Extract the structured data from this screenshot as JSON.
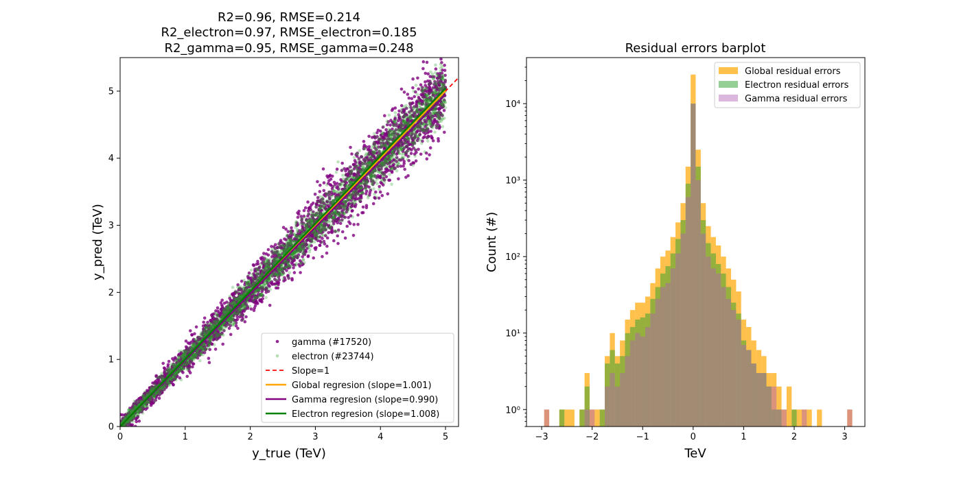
{
  "chart_data": [
    {
      "type": "scatter",
      "title_lines": [
        "R2=0.96, RMSE=0.214",
        "R2_electron=0.97, RMSE_electron=0.185",
        "R2_gamma=0.95, RMSE_gamma=0.248"
      ],
      "xlabel": "y_true (TeV)",
      "ylabel": "y_pred (TeV)",
      "xlim": [
        0,
        5.2
      ],
      "ylim": [
        0,
        5.5
      ],
      "xticks": [
        "0",
        "1",
        "2",
        "3",
        "4",
        "5"
      ],
      "yticks": [
        "0",
        "1",
        "2",
        "3",
        "4",
        "5"
      ],
      "grid": false,
      "legend_position": "lower-right",
      "series": [
        {
          "name": "gamma (#17520)",
          "kind": "scatter",
          "color": "#800080",
          "count": 17520,
          "spread": 0.248
        },
        {
          "name": "electron (#23744)",
          "kind": "scatter",
          "color": "#2ca02c",
          "count": 23744,
          "spread": 0.185
        },
        {
          "name": "Slope=1",
          "kind": "line",
          "style": "dashed",
          "color": "#ff0000",
          "slope": 1.0
        },
        {
          "name": "Global regresion (slope=1.001)",
          "kind": "line",
          "style": "solid",
          "color": "#ffa500",
          "slope": 1.001
        },
        {
          "name": "Gamma regresion (slope=0.990)",
          "kind": "line",
          "style": "solid",
          "color": "#800080",
          "slope": 0.99
        },
        {
          "name": "Electron regresion (slope=1.008)",
          "kind": "line",
          "style": "solid",
          "color": "#008000",
          "slope": 1.008
        }
      ],
      "x_range": [
        0,
        5
      ]
    },
    {
      "type": "histogram",
      "title": "Residual errors barplot",
      "xlabel": "TeV",
      "ylabel": "Count (#)",
      "xlim": [
        -3.3,
        3.4
      ],
      "yscale": "log",
      "ylim": [
        0.6,
        40000
      ],
      "xticks": [
        -3,
        -2,
        -1,
        0,
        1,
        2,
        3
      ],
      "xtick_labels": [
        "−3",
        "−2",
        "−1",
        "0",
        "1",
        "2",
        "3"
      ],
      "yticks": [
        1,
        10,
        100,
        1000,
        10000
      ],
      "ytick_labels": [
        "10⁰",
        "10¹",
        "10²",
        "10³",
        "10⁴"
      ],
      "legend_position": "top-right",
      "bin_width": 0.1,
      "series": [
        {
          "name": "Global residual errors",
          "color": "#ffa500",
          "alpha": 0.7,
          "bins": [
            [
              -2.9,
              1
            ],
            [
              -2.6,
              1
            ],
            [
              -2.5,
              1
            ],
            [
              -2.4,
              1
            ],
            [
              -2.2,
              1
            ],
            [
              -2.1,
              3
            ],
            [
              -2.0,
              1
            ],
            [
              -1.9,
              1
            ],
            [
              -1.8,
              1
            ],
            [
              -1.7,
              5
            ],
            [
              -1.6,
              10
            ],
            [
              -1.5,
              5
            ],
            [
              -1.4,
              8
            ],
            [
              -1.3,
              15
            ],
            [
              -1.2,
              20
            ],
            [
              -1.1,
              25
            ],
            [
              -1.0,
              25
            ],
            [
              -0.9,
              30
            ],
            [
              -0.8,
              45
            ],
            [
              -0.7,
              70
            ],
            [
              -0.6,
              100
            ],
            [
              -0.5,
              120
            ],
            [
              -0.4,
              180
            ],
            [
              -0.3,
              280
            ],
            [
              -0.2,
              500
            ],
            [
              -0.1,
              1500
            ],
            [
              0.0,
              24000
            ],
            [
              0.1,
              2500
            ],
            [
              0.2,
              500
            ],
            [
              0.3,
              250
            ],
            [
              0.4,
              180
            ],
            [
              0.5,
              140
            ],
            [
              0.6,
              100
            ],
            [
              0.7,
              70
            ],
            [
              0.8,
              50
            ],
            [
              0.9,
              35
            ],
            [
              1.0,
              15
            ],
            [
              1.1,
              12
            ],
            [
              1.2,
              8
            ],
            [
              1.3,
              6
            ],
            [
              1.4,
              5
            ],
            [
              1.5,
              3
            ],
            [
              1.6,
              3
            ],
            [
              1.7,
              2
            ],
            [
              1.8,
              1
            ],
            [
              1.9,
              2
            ],
            [
              2.0,
              1
            ],
            [
              2.1,
              1
            ],
            [
              2.2,
              1
            ],
            [
              2.3,
              1
            ],
            [
              2.5,
              1
            ],
            [
              3.1,
              1
            ]
          ]
        },
        {
          "name": "Electron residual errors",
          "color": "#2ca02c",
          "alpha": 0.5,
          "bins": [
            [
              -2.6,
              1
            ],
            [
              -2.2,
              1
            ],
            [
              -2.1,
              2
            ],
            [
              -1.8,
              1
            ],
            [
              -1.7,
              4
            ],
            [
              -1.6,
              6
            ],
            [
              -1.5,
              4
            ],
            [
              -1.4,
              5
            ],
            [
              -1.3,
              10
            ],
            [
              -1.2,
              12
            ],
            [
              -1.1,
              15
            ],
            [
              -1.0,
              16
            ],
            [
              -0.9,
              18
            ],
            [
              -0.8,
              28
            ],
            [
              -0.7,
              40
            ],
            [
              -0.6,
              60
            ],
            [
              -0.5,
              75
            ],
            [
              -0.4,
              110
            ],
            [
              -0.3,
              170
            ],
            [
              -0.2,
              300
            ],
            [
              -0.1,
              900
            ],
            [
              0.0,
              10000
            ],
            [
              0.1,
              1500
            ],
            [
              0.2,
              300
            ],
            [
              0.3,
              150
            ],
            [
              0.4,
              110
            ],
            [
              0.5,
              80
            ],
            [
              0.6,
              60
            ],
            [
              0.7,
              40
            ],
            [
              0.8,
              25
            ],
            [
              0.9,
              18
            ],
            [
              1.0,
              8
            ],
            [
              1.1,
              6
            ],
            [
              1.2,
              4
            ],
            [
              1.3,
              3
            ],
            [
              1.4,
              3
            ],
            [
              1.5,
              2
            ],
            [
              1.6,
              1
            ],
            [
              1.7,
              1
            ],
            [
              2.0,
              1
            ]
          ]
        },
        {
          "name": "Gamma residual errors",
          "color": "#b05fb5",
          "alpha": 0.45,
          "bins": [
            [
              -2.9,
              1
            ],
            [
              -2.1,
              1
            ],
            [
              -2.0,
              1
            ],
            [
              -1.7,
              2
            ],
            [
              -1.6,
              3
            ],
            [
              -1.5,
              2
            ],
            [
              -1.4,
              3
            ],
            [
              -1.3,
              5
            ],
            [
              -1.2,
              8
            ],
            [
              -1.1,
              10
            ],
            [
              -1.0,
              9
            ],
            [
              -0.9,
              12
            ],
            [
              -0.8,
              18
            ],
            [
              -0.7,
              28
            ],
            [
              -0.6,
              40
            ],
            [
              -0.5,
              45
            ],
            [
              -0.4,
              70
            ],
            [
              -0.3,
              110
            ],
            [
              -0.2,
              200
            ],
            [
              -0.1,
              600
            ],
            [
              0.0,
              10000
            ],
            [
              0.1,
              1000
            ],
            [
              0.2,
              200
            ],
            [
              0.3,
              100
            ],
            [
              0.4,
              70
            ],
            [
              0.5,
              60
            ],
            [
              0.6,
              40
            ],
            [
              0.7,
              28
            ],
            [
              0.8,
              20
            ],
            [
              0.9,
              15
            ],
            [
              1.0,
              7
            ],
            [
              1.1,
              6
            ],
            [
              1.2,
              4
            ],
            [
              1.3,
              3
            ],
            [
              1.4,
              3
            ],
            [
              1.5,
              2
            ],
            [
              1.6,
              2
            ],
            [
              1.7,
              1
            ],
            [
              1.8,
              1
            ],
            [
              2.2,
              1
            ],
            [
              3.1,
              1
            ]
          ]
        }
      ]
    }
  ]
}
